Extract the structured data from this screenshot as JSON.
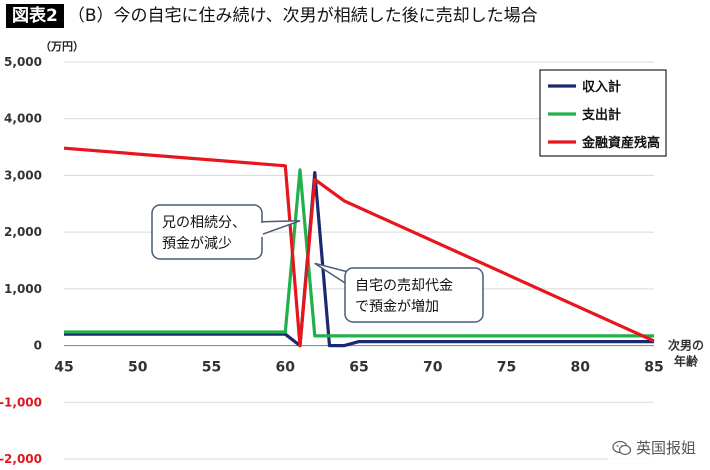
{
  "header": {
    "figure_label": "図表2",
    "title": "（B）今の自宅に住み続け、次男が相続した後に売却した場合"
  },
  "watermark": {
    "text": "英国报姐",
    "icon": "wechat-icon"
  },
  "chart_data": {
    "type": "line",
    "title": "（B）今の自宅に住み続け、次男が相続した後に売却した場合",
    "ylabel": "（万円）",
    "xlabel": "次男の年齢",
    "xlim": [
      45,
      85
    ],
    "ylim": [
      -2000,
      5000
    ],
    "x_ticks": [
      45,
      50,
      55,
      60,
      65,
      70,
      75,
      80,
      85
    ],
    "y_ticks": [
      -2000,
      -1000,
      0,
      1000,
      2000,
      3000,
      4000,
      5000
    ],
    "y_tick_labels": [
      "-2,000",
      "-1,000",
      "0",
      "1,000",
      "2,000",
      "3,000",
      "4,000",
      "5,000"
    ],
    "grid": true,
    "legend_position": "top-right",
    "series": [
      {
        "name": "収入計",
        "color": "#1a2a6c",
        "points": [
          [
            45,
            200
          ],
          [
            60,
            200
          ],
          [
            61,
            0
          ],
          [
            62,
            3050
          ],
          [
            63,
            0
          ],
          [
            64,
            0
          ],
          [
            65,
            70
          ],
          [
            85,
            70
          ]
        ]
      },
      {
        "name": "支出計",
        "color": "#22b04b",
        "points": [
          [
            45,
            240
          ],
          [
            60,
            240
          ],
          [
            61,
            3100
          ],
          [
            62,
            170
          ],
          [
            85,
            170
          ]
        ]
      },
      {
        "name": "金融資産残高",
        "color": "#e8161c",
        "points": [
          [
            45,
            3480
          ],
          [
            60,
            3170
          ],
          [
            61,
            0
          ],
          [
            62,
            2930
          ],
          [
            64,
            2550
          ],
          [
            85,
            80
          ]
        ]
      }
    ],
    "annotations": [
      {
        "text": "兄の相続分、\n預金が減少",
        "target": [
          61,
          2200
        ]
      },
      {
        "text": "自宅の売却代金\nで預金が増加",
        "target": [
          62,
          1450
        ]
      }
    ]
  }
}
